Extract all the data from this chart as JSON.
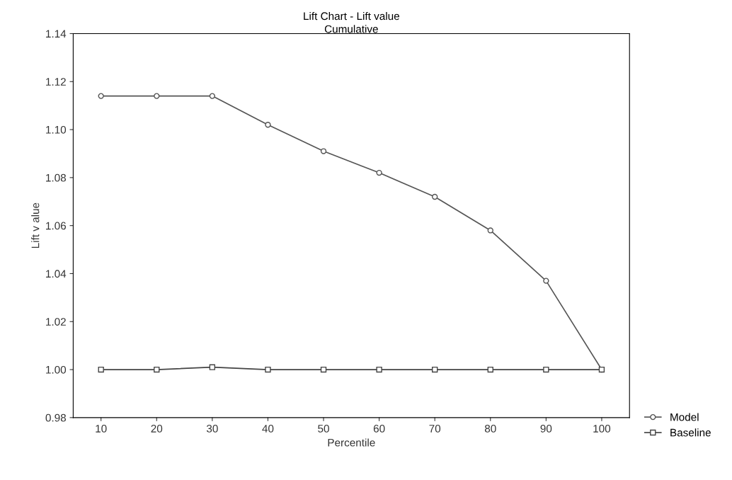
{
  "chart_data": {
    "type": "line",
    "title": "Lift Chart - Lift value",
    "subtitle": "Cumulative",
    "xlabel": "Percentile",
    "ylabel": "Lift v alue",
    "x": [
      10,
      20,
      30,
      40,
      50,
      60,
      70,
      80,
      90,
      100
    ],
    "series": [
      {
        "name": "Model",
        "color": "#555555",
        "marker": "circle",
        "values": [
          1.114,
          1.114,
          1.114,
          1.102,
          1.091,
          1.082,
          1.072,
          1.058,
          1.037,
          1.0
        ]
      },
      {
        "name": "Baseline",
        "color": "#444444",
        "marker": "square",
        "values": [
          1.0,
          1.0,
          1.001,
          1.0,
          1.0,
          1.0,
          1.0,
          1.0,
          1.0,
          1.0
        ]
      }
    ],
    "xlim": [
      5,
      105
    ],
    "xticks": [
      10,
      20,
      30,
      40,
      50,
      60,
      70,
      80,
      90,
      100
    ],
    "ylim": [
      0.98,
      1.14
    ],
    "yticks": [
      0.98,
      {
        "value": 1.0,
        "label": "1.00"
      },
      1.02,
      1.04,
      1.06,
      1.08,
      {
        "value": 1.1,
        "label": "1.10"
      },
      1.12,
      1.14
    ],
    "grid": false,
    "legend": "bottom right",
    "line_style": "solid"
  }
}
